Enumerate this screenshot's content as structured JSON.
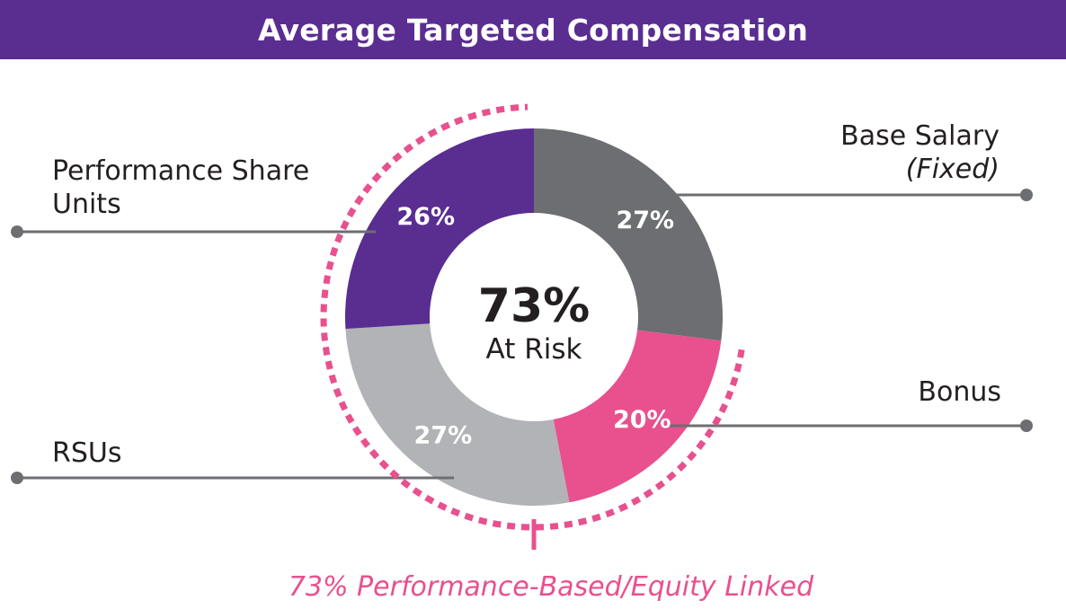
{
  "title": "Average Targeted Compensation",
  "colors": {
    "header_bg": "#5a2d91",
    "accent": "#e8508e",
    "leader": "#6d6e71"
  },
  "chart_data": {
    "type": "pie",
    "donut": true,
    "center_value": "73%",
    "center_label": "At Risk",
    "slices": [
      {
        "key": "base_salary",
        "label": "Base Salary",
        "sublabel": "(Fixed)",
        "value": 27,
        "display": "27%",
        "color": "#6d6e71"
      },
      {
        "key": "bonus",
        "label": "Bonus",
        "value": 20,
        "display": "20%",
        "color": "#e8508e"
      },
      {
        "key": "rsus",
        "label": "RSUs",
        "value": 27,
        "display": "27%",
        "color": "#b2b3b6"
      },
      {
        "key": "psu",
        "label": "Performance Share Units",
        "value": 26,
        "display": "26%",
        "color": "#5a2d91"
      }
    ],
    "footnote": "73% Performance-Based/Equity Linked"
  }
}
